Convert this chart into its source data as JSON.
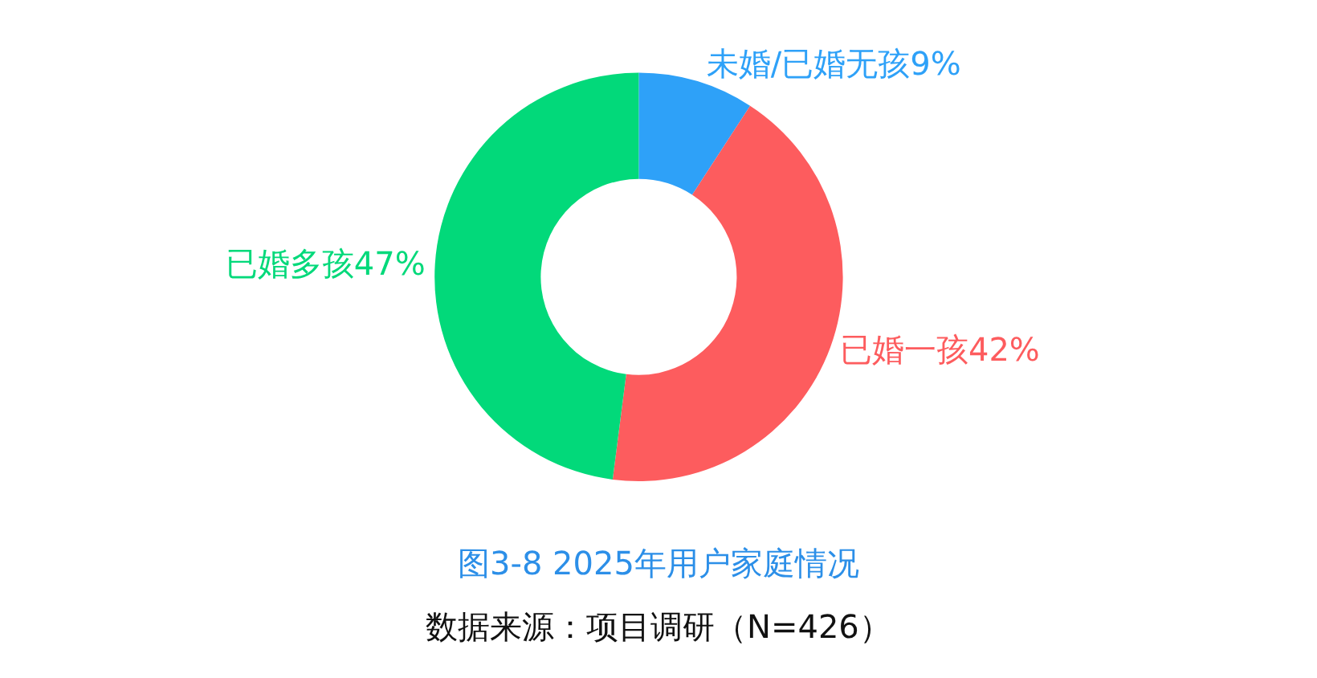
{
  "chart_data": {
    "type": "donut",
    "title": "图3-8 2025年用户家庭情况",
    "categories": [
      "未婚/已婚无孩",
      "已婚一孩",
      "已婚多孩"
    ],
    "values": [
      9,
      42,
      47
    ],
    "value_labels": [
      "9%",
      "42%",
      "47%"
    ],
    "colors": [
      "#2ea1f8",
      "#fd5c5e",
      "#02d97a"
    ],
    "annotations": [
      "数据来源：项目调研（N=426）"
    ],
    "legend": false
  }
}
